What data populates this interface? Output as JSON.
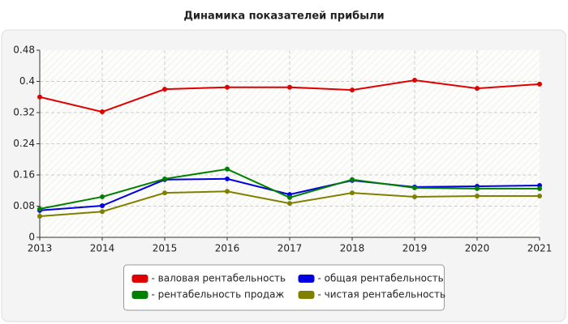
{
  "chart_data": {
    "type": "line",
    "title": "Динамика показателей прибыли",
    "x": [
      2013,
      2014,
      2015,
      2016,
      2017,
      2018,
      2019,
      2020,
      2021
    ],
    "xlim": [
      2013,
      2021
    ],
    "xticks": [
      2013,
      2014,
      2015,
      2016,
      2017,
      2018,
      2019,
      2020,
      2021
    ],
    "ylim": [
      0,
      0.48
    ],
    "yticks": [
      0,
      0.08,
      0.16,
      0.24,
      0.32,
      0.4,
      0.48
    ],
    "grid": true,
    "legend": "bottom",
    "series": [
      {
        "name": "- валовая рентабельность",
        "color": "#e00000",
        "values": [
          0.36,
          0.322,
          0.38,
          0.385,
          0.385,
          0.378,
          0.403,
          0.382,
          0.393
        ]
      },
      {
        "name": "- общая рентабельность",
        "color": "#0000e0",
        "values": [
          0.069,
          0.081,
          0.148,
          0.15,
          0.11,
          0.146,
          0.129,
          0.131,
          0.133
        ]
      },
      {
        "name": "- рентабельность продаж",
        "color": "#008000",
        "values": [
          0.073,
          0.104,
          0.15,
          0.175,
          0.102,
          0.148,
          0.127,
          0.125,
          0.125
        ]
      },
      {
        "name": "- чистая рентабельность",
        "color": "#808000",
        "values": [
          0.054,
          0.066,
          0.114,
          0.118,
          0.087,
          0.114,
          0.104,
          0.106,
          0.106
        ]
      }
    ]
  }
}
